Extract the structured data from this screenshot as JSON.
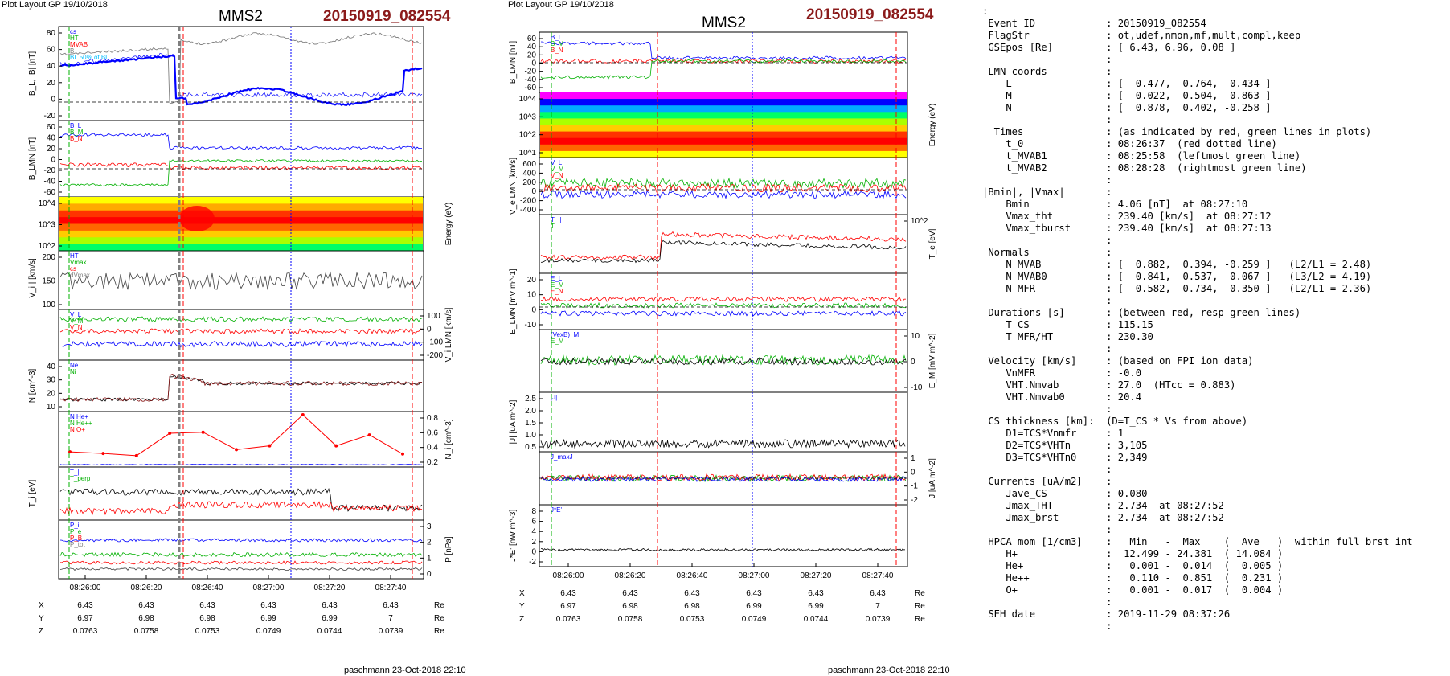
{
  "left": {
    "plot_layout": "Plot Layout GP 19/10/2018",
    "mms": "MMS2",
    "event": "20150919_082554",
    "footer": "paschmann 23-Oct-2018 22:10",
    "time_ticks": [
      "08:26:00",
      "08:26:20",
      "08:26:40",
      "08:27:00",
      "08:27:20",
      "08:27:40"
    ],
    "pos_rows": [
      {
        "label": "X",
        "values": [
          "6.43",
          "6.43",
          "6.43",
          "6.43",
          "6.43",
          "6.43"
        ],
        "unit": "Re"
      },
      {
        "label": "Y",
        "values": [
          "6.97",
          "6.98",
          "6.98",
          "6.99",
          "6.99",
          "7"
        ],
        "unit": "Re"
      },
      {
        "label": "Z",
        "values": [
          "0.0763",
          "0.0758",
          "0.0753",
          "0.0749",
          "0.0744",
          "0.0739"
        ],
        "unit": "Re"
      }
    ]
  },
  "right": {
    "plot_layout": "Plot Layout GP 19/10/2018",
    "mms": "MMS2",
    "event": "20150919_082554",
    "footer": "paschmann 23-Oct-2018 22:10",
    "time_ticks": [
      "08:26:00",
      "08:26:20",
      "08:26:40",
      "08:27:00",
      "08:27:20",
      "08:27:40"
    ],
    "pos_rows": [
      {
        "label": "X",
        "values": [
          "6.43",
          "6.43",
          "6.43",
          "6.43",
          "6.43",
          "6.43"
        ],
        "unit": "Re"
      },
      {
        "label": "Y",
        "values": [
          "6.97",
          "6.98",
          "6.98",
          "6.99",
          "6.99",
          "7"
        ],
        "unit": "Re"
      },
      {
        "label": "Z",
        "values": [
          "0.0763",
          "0.0758",
          "0.0753",
          "0.0749",
          "0.0744",
          "0.0739"
        ],
        "unit": "Re"
      }
    ]
  },
  "summary_lines": [
    ":",
    " Event ID            : 20150919_082554",
    " FlagStr             : ot,udef,nmon,mf,mult,compl,keep",
    " GSEpos [Re]         : [ 6.43, 6.96, 0.08 ]",
    "                     :",
    " LMN coords          :",
    "    L                : [  0.477, -0.764,  0.434 ]",
    "    M                : [  0.022,  0.504,  0.863 ]",
    "    N                : [  0.878,  0.402, -0.258 ]",
    "                     :",
    "  Times              : (as indicated by red, green lines in plots)",
    "    t_0              : 08:26:37  (red dotted line)",
    "    t_MVAB1          : 08:25:58  (leftmost green line)",
    "    t_MVAB2          : 08:28:28  (rightmost green line)",
    "                     :",
    "|Bmin|, |Vmax|       :",
    "    Bmin             : 4.06 [nT]  at 08:27:10",
    "    Vmax_tht         : 239.40 [km/s]  at 08:27:12",
    "    Vmax_tburst      : 239.40 [km/s]  at 08:27:13",
    "                     :",
    " Normals             :",
    "    N MVAB           : [  0.882,  0.394, -0.259 ]   (L2/L1 = 2.48)",
    "    N MVAB0          : [  0.841,  0.537, -0.067 ]   (L3/L2 = 4.19)",
    "    N MFR            : [ -0.582, -0.734,  0.350 ]   (L2/L1 = 2.36)",
    "                     :",
    " Durations [s]       : (between red, resp green lines)",
    "    T_CS             : 115.15",
    "    T_MFR/HT         : 230.30",
    "                     :",
    " Velocity [km/s]     : (based on FPI ion data)",
    "    VnMFR            : -0.0",
    "    VHT.Nmvab        : 27.0  (HTcc = 0.883)",
    "    VHT.Nmvab0       : 20.4",
    "                     :",
    " CS thickness [km]:  (D=T_CS * Vs from above)",
    "    D1=TCS*Vnmfr     : 1",
    "    D2=TCS*VHTn      : 3,105",
    "    D3=TCS*VHTn0     : 2,349",
    "                     :",
    " Currents [uA/m2]    :",
    "    Jave_CS          : 0.080",
    "    Jmax_THT         : 2.734  at 08:27:52",
    "    Jmax_brst        : 2.734  at 08:27:52",
    "                     :",
    " HPCA mom [1/cm3]    :   Min   -  Max    (  Ave   )  within full brst int",
    "    H+               :  12.499 - 24.381  ( 14.084 )",
    "    He+              :   0.001 -  0.014  (  0.005 )",
    "    He++             :   0.110 -  0.851  (  0.231 )",
    "    O+               :   0.001 -  0.017  (  0.004 )",
    "                     :",
    " SEH date            : 2019-11-29 08:37:26",
    "                     :"
  ],
  "colors": {
    "event_red": "#8b1a1a",
    "blue": "#0000ff",
    "green": "#00b000",
    "red": "#ff0000",
    "black": "#000000",
    "gray": "#808080",
    "magenta": "#ff00ff",
    "cyan": "#00bfff"
  },
  "chart_data": [
    {
      "type": "line",
      "title": "MMS2 20150919_082554",
      "xlabel": "",
      "x_tick_labels": [
        "08:26:00",
        "08:26:20",
        "08:26:40",
        "08:27:00",
        "08:27:20",
        "08:27:40"
      ],
      "panels": [
        {
          "ylabel": "B_L, |B| [nT]",
          "ylim": [
            -20,
            80
          ],
          "yticks": [
            "80",
            "60",
            "40",
            "20",
            "0",
            "-20"
          ],
          "legend": [
            "cs",
            "HT",
            "MVAB",
            "B",
            "BL 50% of BL"
          ]
        },
        {
          "ylabel": "B_LMN [nT]",
          "ylim": [
            -70,
            70
          ],
          "yticks": [
            "60",
            "40",
            "20",
            "0",
            "-20",
            "-40",
            "-60"
          ],
          "legend": [
            "B_L",
            "B_M",
            "B_N"
          ]
        },
        {
          "type": "heatmap",
          "ylabel": "Energy (eV)",
          "yticks": [
            "10^4",
            "10^3",
            "10^2"
          ]
        },
        {
          "ylabel": "| V_i | [km/s]",
          "ylim": [
            80,
            240
          ],
          "yticks": [
            "200",
            "150",
            "100"
          ],
          "legend": [
            "HT",
            "Vmax",
            "cs",
            "dVmax"
          ]
        },
        {
          "ylabel": "V_i LMN [km/s]",
          "right_axis": true,
          "yticks": [
            "100",
            "0",
            "-100",
            "-200"
          ],
          "legend": [
            "V_L",
            "V_M",
            "V_N"
          ]
        },
        {
          "ylabel": "N [cm^-3]",
          "ylim": [
            0,
            45
          ],
          "yticks": [
            "40",
            "30",
            "20",
            "10"
          ],
          "legend": [
            "Ne",
            "Ni"
          ]
        },
        {
          "ylabel": "N_i [cm^-3]",
          "right_axis": true,
          "ylim": [
            0,
            0.9
          ],
          "yticks": [
            "0.8",
            "0.6",
            "0.4",
            "0.2"
          ],
          "legend": [
            "N He+",
            "N He++",
            "N O+"
          ],
          "series": [
            {
              "name": "N He++",
              "values": [
                0.22,
                0.19,
                0.15,
                0.56,
                0.58,
                0.26,
                0.33,
                0.9,
                0.33,
                0.53,
                0.18
              ]
            }
          ]
        },
        {
          "ylabel": "T_i [eV]",
          "legend": [
            "T_||",
            "T_perp"
          ]
        },
        {
          "ylabel": "P [nPa]",
          "right_axis": true,
          "yticks": [
            "3",
            "2",
            "1",
            "0"
          ],
          "legend": [
            "P_i",
            "P_e",
            "P_B",
            "P_tot"
          ]
        }
      ]
    },
    {
      "type": "line",
      "title": "MMS2 20150919_082554",
      "xlabel": "",
      "x_tick_labels": [
        "08:26:00",
        "08:26:20",
        "08:26:40",
        "08:27:00",
        "08:27:20",
        "08:27:40"
      ],
      "panels": [
        {
          "ylabel": "B_LMN [nT]",
          "ylim": [
            -70,
            70
          ],
          "yticks": [
            "60",
            "40",
            "20",
            "0",
            "-20",
            "-40",
            "-60"
          ],
          "legend": [
            "B_L",
            "B_M",
            "B_N"
          ]
        },
        {
          "type": "heatmap",
          "ylabel": "Energy (eV)",
          "yticks": [
            "10^4",
            "10^3",
            "10^2",
            "10^1"
          ]
        },
        {
          "ylabel": "V_e LMN [km/s]",
          "ylim": [
            -500,
            650
          ],
          "yticks": [
            "600",
            "400",
            "200",
            "0",
            "-200",
            "-400"
          ],
          "legend": [
            "V_L",
            "V_M",
            "V_N"
          ]
        },
        {
          "ylabel": "T_e [eV]",
          "right_axis": true,
          "yticks": [
            "10^2"
          ],
          "legend": [
            "T_||",
            "T"
          ]
        },
        {
          "ylabel": "E_LMN [mV m^-1]",
          "ylim": [
            -12,
            22
          ],
          "yticks": [
            "20",
            "10",
            "0",
            "-10"
          ],
          "legend": [
            "E_L",
            "E_M",
            "E_N"
          ]
        },
        {
          "ylabel": "E_M [mV m^-2]",
          "right_axis": true,
          "yticks": [
            "10",
            "0",
            "-10"
          ],
          "legend": [
            "(VexB)_M",
            "E_M"
          ]
        },
        {
          "ylabel": "|J| [uA m^-2]",
          "ylim": [
            0,
            2.7
          ],
          "yticks": [
            "2.5",
            "2.0",
            "1.5",
            "1.0",
            "0.5"
          ],
          "legend": [
            "|J|"
          ]
        },
        {
          "ylabel": "J [uA m^-2]",
          "right_axis": true,
          "yticks": [
            "1",
            "0",
            "-1",
            "-2"
          ],
          "legend": [
            "J_maxJ"
          ]
        },
        {
          "ylabel": "J*E' [nW m^-3]",
          "ylim": [
            -2,
            9
          ],
          "yticks": [
            "8",
            "6",
            "4",
            "2",
            "0",
            "-2"
          ],
          "legend": [
            "J*E'"
          ]
        }
      ]
    }
  ]
}
